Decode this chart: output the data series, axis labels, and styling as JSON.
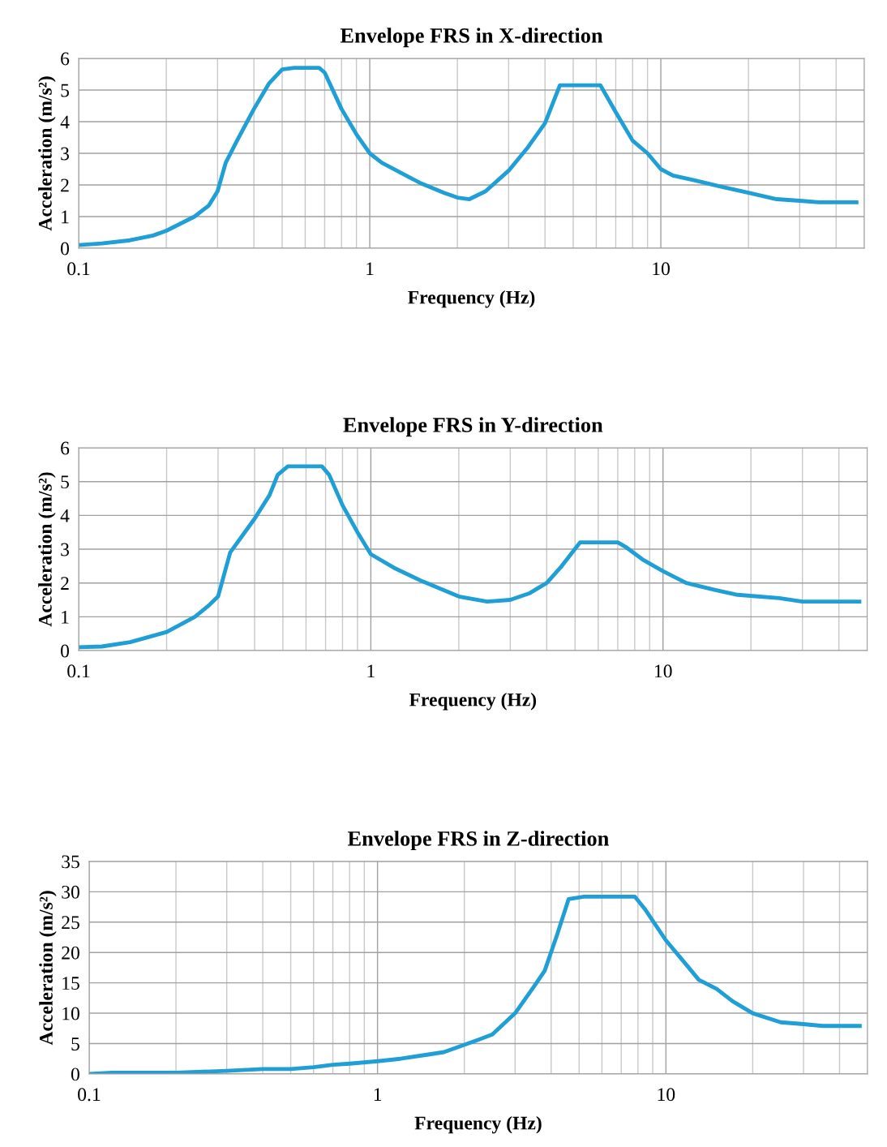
{
  "chart_data": [
    {
      "type": "line",
      "title": "Envelope FRS in X-direction",
      "xlabel": "Frequency (Hz)",
      "ylabel": "Acceleration (m/s²)",
      "log": "x",
      "grid": true,
      "marker": "none",
      "line_style": "solid",
      "xlim": [
        0.1,
        50
      ],
      "xticks": [
        0.1,
        1,
        10
      ],
      "ylim": [
        0,
        6
      ],
      "yticks": [
        0,
        1,
        2,
        3,
        4,
        5,
        6
      ],
      "series": [
        {
          "color": "#1f9fd5",
          "x": [
            0.1,
            0.12,
            0.15,
            0.18,
            0.2,
            0.25,
            0.28,
            0.3,
            0.32,
            0.35,
            0.4,
            0.45,
            0.5,
            0.55,
            0.67,
            0.7,
            0.8,
            0.9,
            1,
            1.1,
            1.3,
            1.5,
            1.8,
            2,
            2.2,
            2.5,
            3,
            3.5,
            4,
            4.5,
            6.2,
            7,
            8,
            9,
            10,
            11,
            13,
            16,
            20,
            25,
            30,
            35,
            47
          ],
          "values": [
            0.1,
            0.15,
            0.25,
            0.4,
            0.55,
            1.0,
            1.35,
            1.8,
            2.7,
            3.4,
            4.4,
            5.2,
            5.65,
            5.7,
            5.7,
            5.55,
            4.4,
            3.6,
            3.0,
            2.7,
            2.35,
            2.05,
            1.75,
            1.6,
            1.55,
            1.8,
            2.45,
            3.2,
            3.95,
            5.15,
            5.15,
            4.3,
            3.4,
            3.0,
            2.5,
            2.3,
            2.15,
            1.95,
            1.75,
            1.55,
            1.5,
            1.45,
            1.45
          ]
        }
      ]
    },
    {
      "type": "line",
      "title": "Envelope FRS in Y-direction",
      "xlabel": "Frequency (Hz)",
      "ylabel": "Acceleration (m/s²)",
      "log": "x",
      "grid": true,
      "marker": "none",
      "line_style": "solid",
      "xlim": [
        0.1,
        50
      ],
      "xticks": [
        0.1,
        1,
        10
      ],
      "ylim": [
        0,
        6
      ],
      "yticks": [
        0,
        1,
        2,
        3,
        4,
        5,
        6
      ],
      "series": [
        {
          "color": "#1f9fd5",
          "x": [
            0.1,
            0.12,
            0.15,
            0.2,
            0.25,
            0.28,
            0.3,
            0.33,
            0.4,
            0.45,
            0.48,
            0.52,
            0.68,
            0.72,
            0.8,
            0.9,
            1,
            1.2,
            1.5,
            2,
            2.5,
            3,
            3.5,
            4,
            4.5,
            5.2,
            7,
            7.5,
            8.5,
            10,
            12,
            15,
            18,
            25,
            30,
            47
          ],
          "values": [
            0.1,
            0.12,
            0.25,
            0.55,
            1.0,
            1.35,
            1.6,
            2.9,
            3.9,
            4.6,
            5.2,
            5.45,
            5.45,
            5.2,
            4.3,
            3.5,
            2.85,
            2.45,
            2.05,
            1.6,
            1.45,
            1.5,
            1.7,
            2.0,
            2.5,
            3.2,
            3.2,
            3.05,
            2.7,
            2.35,
            2.0,
            1.8,
            1.65,
            1.55,
            1.45,
            1.45
          ]
        }
      ]
    },
    {
      "type": "line",
      "title": "Envelope FRS in Z-direction",
      "xlabel": "Frequency (Hz)",
      "ylabel": "Acceleration (m/s²)",
      "log": "x",
      "grid": true,
      "marker": "none",
      "line_style": "solid",
      "xlim": [
        0.1,
        50
      ],
      "xticks": [
        0.1,
        1,
        10
      ],
      "ylim": [
        0,
        35
      ],
      "yticks": [
        0,
        5,
        10,
        15,
        20,
        25,
        30,
        35
      ],
      "series": [
        {
          "color": "#1f9fd5",
          "x": [
            0.1,
            0.12,
            0.2,
            0.3,
            0.4,
            0.5,
            0.6,
            0.7,
            0.8,
            1,
            1.2,
            1.5,
            1.7,
            2,
            2.2,
            2.5,
            3,
            3.5,
            3.8,
            4.2,
            4.6,
            5.2,
            7.8,
            8.5,
            10,
            12,
            13,
            15,
            17,
            20,
            25,
            30,
            35,
            47
          ],
          "values": [
            0,
            0.2,
            0.2,
            0.5,
            0.8,
            0.8,
            1.1,
            1.5,
            1.7,
            2.1,
            2.5,
            3.2,
            3.6,
            4.8,
            5.5,
            6.5,
            10,
            14.5,
            17,
            23,
            28.8,
            29.2,
            29.2,
            27,
            22,
            17.5,
            15.5,
            14,
            12,
            10,
            8.5,
            8.2,
            7.9,
            7.9
          ]
        }
      ]
    }
  ]
}
